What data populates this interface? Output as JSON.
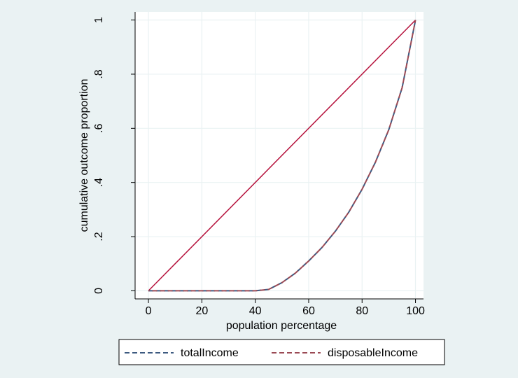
{
  "chart_data": {
    "type": "line",
    "title": "",
    "xlabel": "population percentage",
    "ylabel": "cumulative outcome proportion",
    "xlim": [
      -5,
      103
    ],
    "ylim": [
      -0.03,
      1.03
    ],
    "x_ticks": [
      0,
      20,
      40,
      60,
      80,
      100
    ],
    "x_tick_labels": [
      "0",
      "20",
      "40",
      "60",
      "80",
      "100"
    ],
    "y_ticks": [
      0,
      0.2,
      0.4,
      0.6,
      0.8,
      1
    ],
    "y_tick_labels": [
      "0",
      ".2",
      ".4",
      ".6",
      ".8",
      "1"
    ],
    "grid": true,
    "legend_position": "bottom",
    "equality_line": {
      "x": [
        0,
        100
      ],
      "y": [
        0,
        1
      ],
      "color": "#b5103b"
    },
    "series": [
      {
        "name": "totalIncome",
        "color": "#3d5a80",
        "dash": "dashed",
        "x": [
          0,
          5,
          10,
          15,
          20,
          25,
          30,
          35,
          40,
          45,
          50,
          55,
          60,
          65,
          70,
          75,
          80,
          85,
          90,
          95,
          100
        ],
        "y": [
          0,
          0,
          0,
          0,
          0,
          0,
          0,
          0,
          0,
          0.005,
          0.03,
          0.065,
          0.11,
          0.16,
          0.22,
          0.29,
          0.375,
          0.475,
          0.595,
          0.75,
          1.0
        ]
      },
      {
        "name": "disposableIncome",
        "color": "#9b4a55",
        "dash": "dashed",
        "x": [
          0,
          5,
          10,
          15,
          20,
          25,
          30,
          35,
          40,
          45,
          50,
          55,
          60,
          65,
          70,
          75,
          80,
          85,
          90,
          95,
          100
        ],
        "y": [
          0,
          0,
          0,
          0,
          0,
          0,
          0,
          0,
          0,
          0.005,
          0.03,
          0.065,
          0.11,
          0.16,
          0.22,
          0.29,
          0.375,
          0.475,
          0.595,
          0.75,
          1.0
        ]
      }
    ],
    "colors": {
      "background": "#eaf2f3",
      "plot_background": "#ffffff",
      "grid": "#eaf2f3"
    }
  }
}
